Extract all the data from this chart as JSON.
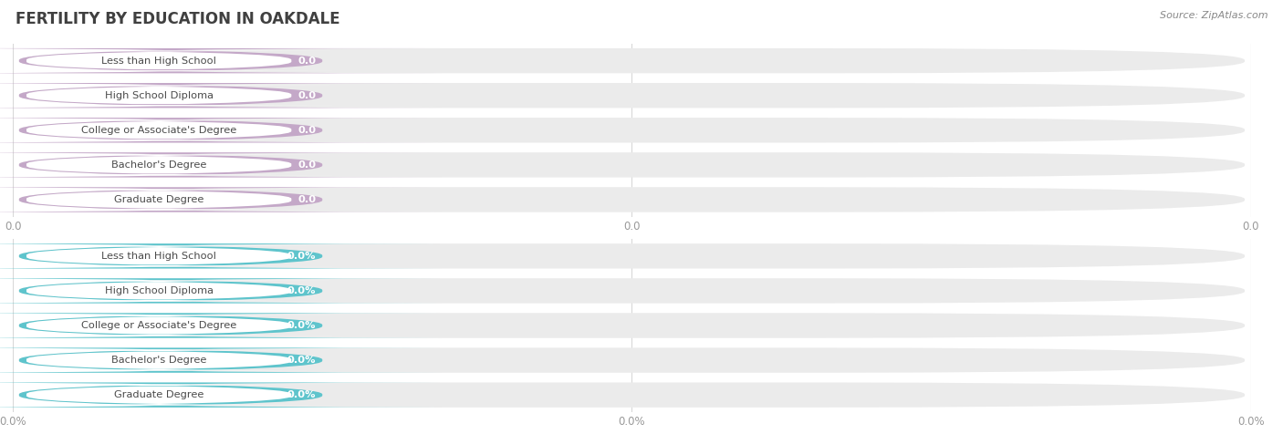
{
  "title": "FERTILITY BY EDUCATION IN OAKDALE",
  "source": "Source: ZipAtlas.com",
  "categories": [
    "Less than High School",
    "High School Diploma",
    "College or Associate's Degree",
    "Bachelor's Degree",
    "Graduate Degree"
  ],
  "values_top": [
    0.0,
    0.0,
    0.0,
    0.0,
    0.0
  ],
  "values_bottom": [
    0.0,
    0.0,
    0.0,
    0.0,
    0.0
  ],
  "bar_color_top": "#c4a8c8",
  "bar_color_bottom": "#5ec4cc",
  "label_color": "#4a4a4a",
  "bg_color": "#ffffff",
  "bar_bg_color": "#ebebeb",
  "axis_label_color": "#999999",
  "title_color": "#404040",
  "source_color": "#888888"
}
